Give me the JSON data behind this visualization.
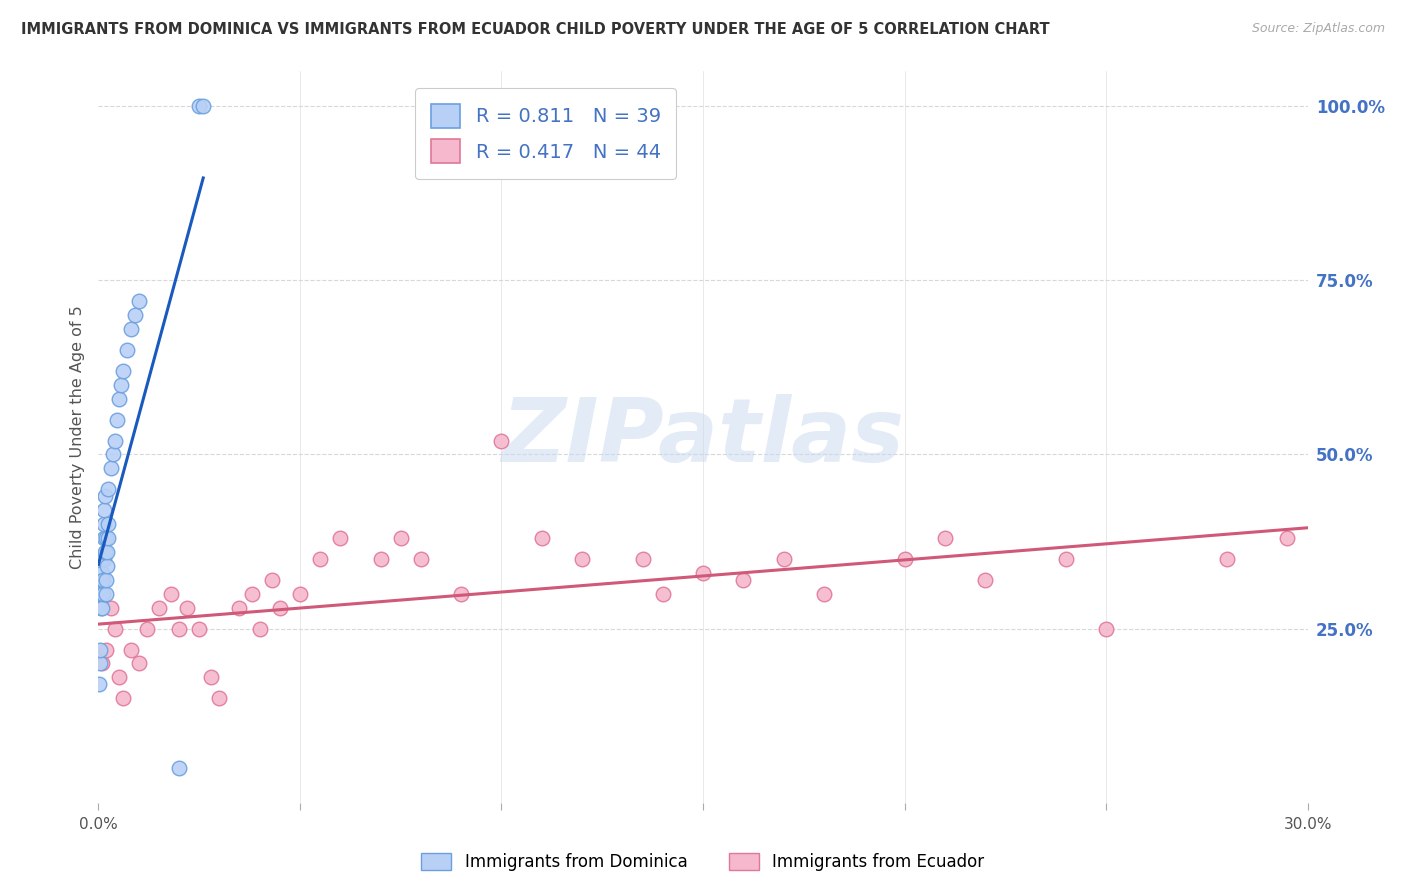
{
  "title": "IMMIGRANTS FROM DOMINICA VS IMMIGRANTS FROM ECUADOR CHILD POVERTY UNDER THE AGE OF 5 CORRELATION CHART",
  "source": "Source: ZipAtlas.com",
  "ylabel": "Child Poverty Under the Age of 5",
  "watermark": "ZIPatlas",
  "dominica_color": "#b8d0f5",
  "dominica_edge_color": "#6aa0e0",
  "ecuador_color": "#f5b8cc",
  "ecuador_edge_color": "#e07898",
  "dominica_line_color": "#1a5abf",
  "ecuador_line_color": "#d05878",
  "R_dominica": 0.811,
  "N_dominica": 39,
  "R_ecuador": 0.417,
  "N_ecuador": 44,
  "dominica_x": [
    0.0002,
    0.0004,
    0.0005,
    0.0006,
    0.0007,
    0.0008,
    0.0009,
    0.001,
    0.001,
    0.0011,
    0.0012,
    0.0013,
    0.0014,
    0.0015,
    0.0015,
    0.0016,
    0.0017,
    0.0018,
    0.0019,
    0.002,
    0.0021,
    0.0022,
    0.0023,
    0.0024,
    0.0025,
    0.003,
    0.0035,
    0.004,
    0.0045,
    0.005,
    0.0055,
    0.006,
    0.007,
    0.008,
    0.009,
    0.01,
    0.02,
    0.025,
    0.026
  ],
  "dominica_y": [
    0.17,
    0.2,
    0.22,
    0.28,
    0.3,
    0.32,
    0.33,
    0.35,
    0.28,
    0.3,
    0.32,
    0.35,
    0.38,
    0.4,
    0.42,
    0.44,
    0.36,
    0.38,
    0.3,
    0.32,
    0.34,
    0.36,
    0.38,
    0.4,
    0.45,
    0.48,
    0.5,
    0.52,
    0.55,
    0.58,
    0.6,
    0.62,
    0.65,
    0.68,
    0.7,
    0.72,
    0.05,
    1.0,
    1.0
  ],
  "ecuador_x": [
    0.001,
    0.002,
    0.003,
    0.004,
    0.005,
    0.006,
    0.008,
    0.01,
    0.012,
    0.015,
    0.018,
    0.02,
    0.022,
    0.025,
    0.028,
    0.03,
    0.035,
    0.038,
    0.04,
    0.043,
    0.045,
    0.05,
    0.055,
    0.06,
    0.07,
    0.075,
    0.08,
    0.09,
    0.1,
    0.11,
    0.12,
    0.135,
    0.14,
    0.15,
    0.16,
    0.17,
    0.18,
    0.2,
    0.21,
    0.22,
    0.24,
    0.25,
    0.28,
    0.295
  ],
  "ecuador_y": [
    0.2,
    0.22,
    0.28,
    0.25,
    0.18,
    0.15,
    0.22,
    0.2,
    0.25,
    0.28,
    0.3,
    0.25,
    0.28,
    0.25,
    0.18,
    0.15,
    0.28,
    0.3,
    0.25,
    0.32,
    0.28,
    0.3,
    0.35,
    0.38,
    0.35,
    0.38,
    0.35,
    0.3,
    0.52,
    0.38,
    0.35,
    0.35,
    0.3,
    0.33,
    0.32,
    0.35,
    0.3,
    0.35,
    0.38,
    0.32,
    0.35,
    0.25,
    0.35,
    0.38
  ],
  "xlim": [
    0.0,
    0.3
  ],
  "ylim": [
    0.0,
    1.05
  ],
  "xticks": [
    0.0,
    0.05,
    0.1,
    0.15,
    0.2,
    0.25,
    0.3
  ],
  "xticklabels": [
    "0.0%",
    "",
    "",
    "",
    "",
    "",
    "30.0%"
  ],
  "right_yticks": [
    0.0,
    0.25,
    0.5,
    0.75,
    1.0
  ],
  "right_yticklabels": [
    "",
    "25.0%",
    "50.0%",
    "75.0%",
    "100.0%"
  ],
  "background_color": "#ffffff",
  "grid_color": "#d8d8d8",
  "legend_R_color": "#4472c4",
  "legend_N_color": "#ed7d31"
}
